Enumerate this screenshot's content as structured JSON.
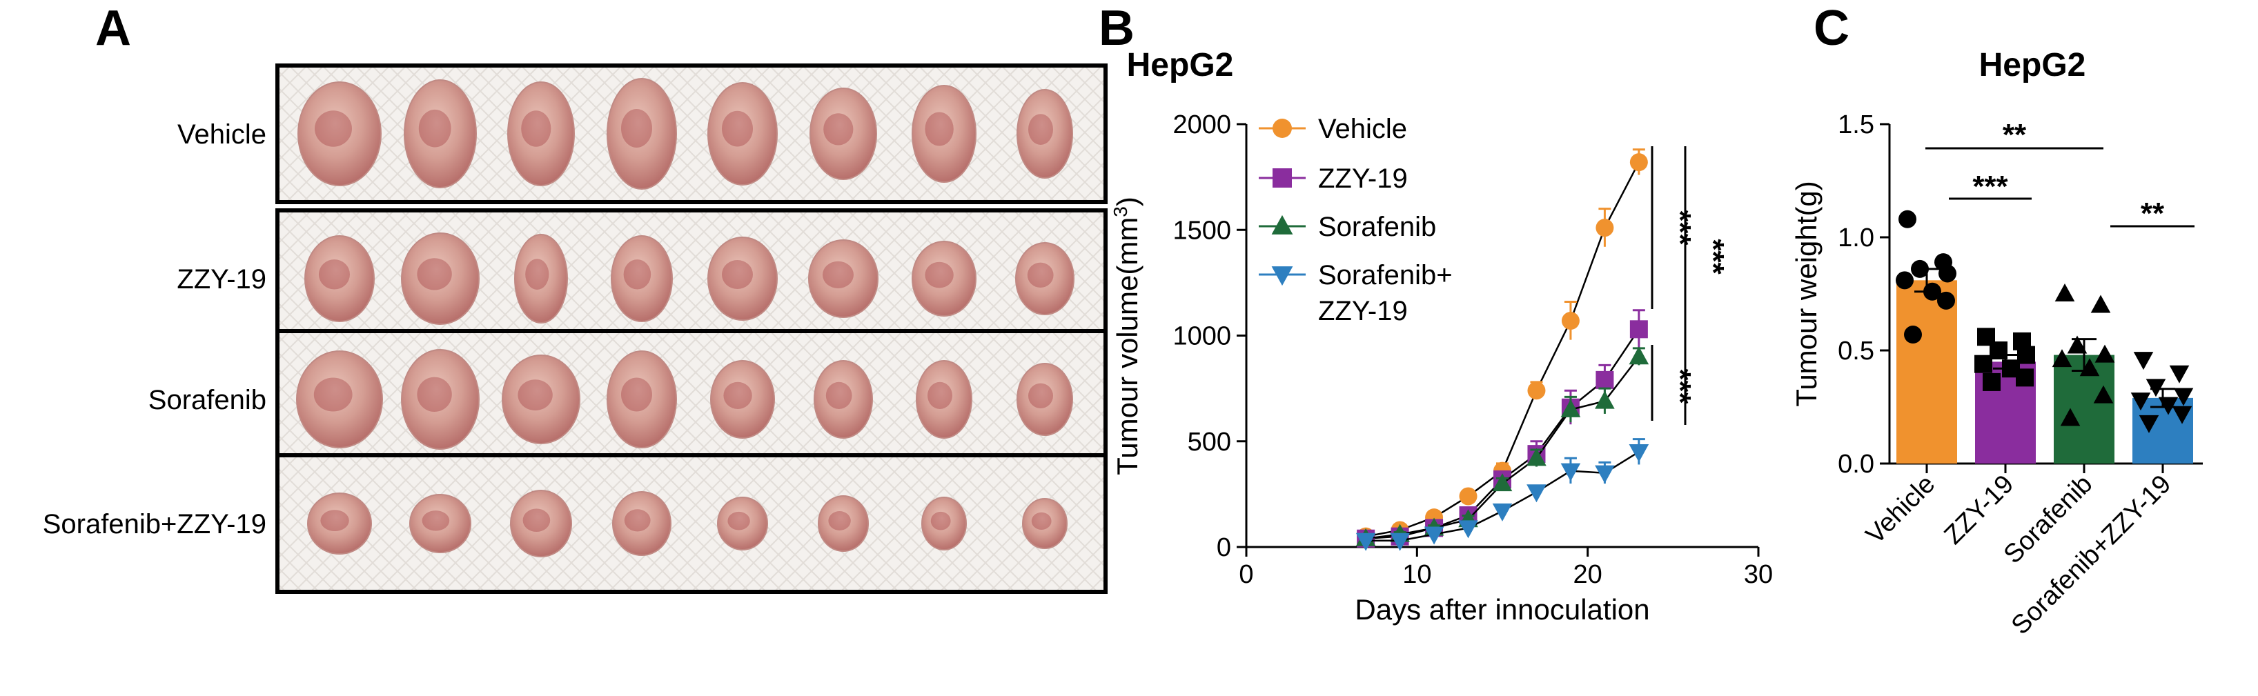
{
  "panel_a": {
    "letter": "A",
    "rows": [
      {
        "label": "Vehicle",
        "tumour_count": 8
      },
      {
        "label": "ZZY-19",
        "tumour_count": 8
      },
      {
        "label": "Sorafenib",
        "tumour_count": 8
      },
      {
        "label": "Sorafenib+ZZY-19",
        "tumour_count": 8
      }
    ],
    "colors": {
      "tumour": "#d9a9a0",
      "tumour_dark": "#9b2d34",
      "border": "#000000",
      "paper": "#f4f1ee"
    }
  },
  "panel_b": {
    "letter": "B"
  },
  "panel_c": {
    "letter": "C"
  },
  "chart_data": [
    {
      "type": "line",
      "title": "HepG2",
      "xlabel": "Days after innoculation",
      "ylabel": "Tumour volume(mm3)",
      "ylabel_main": "Tumour volume(mm",
      "ylabel_sup": "3",
      "ylabel_close": ")",
      "xlim": [
        0,
        30
      ],
      "ylim": [
        0,
        2000
      ],
      "xticks": [
        "0",
        "10",
        "20",
        "30"
      ],
      "yticks": [
        "0",
        "500",
        "1000",
        "1500",
        "2000"
      ],
      "x": [
        7,
        9,
        11,
        13,
        15,
        17,
        19,
        21,
        23
      ],
      "series": [
        {
          "name": "Vehicle",
          "marker": "circle",
          "color": "#f0922e",
          "values": [
            50,
            80,
            140,
            240,
            360,
            740,
            1070,
            1510,
            1820
          ],
          "errors": [
            10,
            12,
            18,
            22,
            35,
            40,
            90,
            90,
            60
          ]
        },
        {
          "name": "ZZY-19",
          "marker": "square",
          "color": "#8a2d9e",
          "values": [
            40,
            50,
            90,
            150,
            320,
            440,
            660,
            790,
            1030
          ],
          "errors": [
            8,
            10,
            12,
            18,
            25,
            60,
            80,
            70,
            90
          ]
        },
        {
          "name": "Sorafenib",
          "marker": "triangle-up",
          "color": "#1f6b3a",
          "values": [
            40,
            60,
            90,
            130,
            300,
            420,
            650,
            690,
            900
          ],
          "errors": [
            8,
            10,
            12,
            18,
            25,
            40,
            60,
            60,
            40
          ]
        },
        {
          "name": "Sorafenib+",
          "name_line2": "ZZY-19",
          "marker": "triangle-down",
          "color": "#2d7fc0",
          "values": [
            30,
            30,
            60,
            90,
            170,
            260,
            360,
            350,
            450
          ],
          "errors": [
            5,
            8,
            10,
            12,
            18,
            25,
            60,
            50,
            60
          ]
        }
      ],
      "annotations": [
        "***",
        "***",
        "***"
      ]
    },
    {
      "type": "bar",
      "title": "HepG2",
      "xlabel": "",
      "ylabel": "Tumour weight(g)",
      "ylim": [
        0,
        1.5
      ],
      "yticks": [
        "0.0",
        "0.5",
        "1.0",
        "1.5"
      ],
      "categories": [
        "Vehicle",
        "ZZY-19",
        "Sorafenib",
        "Sorafenib+ZZY-19"
      ],
      "values": [
        0.81,
        0.45,
        0.48,
        0.29
      ],
      "errors": [
        0.05,
        0.03,
        0.07,
        0.04
      ],
      "colors": [
        "#f0922e",
        "#8a2d9e",
        "#1f6b3a",
        "#2d7fc0"
      ],
      "markers": [
        "circle",
        "square",
        "triangle-up",
        "triangle-down"
      ],
      "points": [
        [
          1.08,
          0.89,
          0.86,
          0.84,
          0.81,
          0.76,
          0.72,
          0.57
        ],
        [
          0.56,
          0.54,
          0.5,
          0.48,
          0.44,
          0.42,
          0.38,
          0.36
        ],
        [
          0.75,
          0.7,
          0.52,
          0.48,
          0.46,
          0.42,
          0.3,
          0.2
        ],
        [
          0.46,
          0.4,
          0.34,
          0.3,
          0.28,
          0.26,
          0.22,
          0.18
        ]
      ],
      "annotations": [
        "***",
        "**",
        "**"
      ]
    }
  ]
}
